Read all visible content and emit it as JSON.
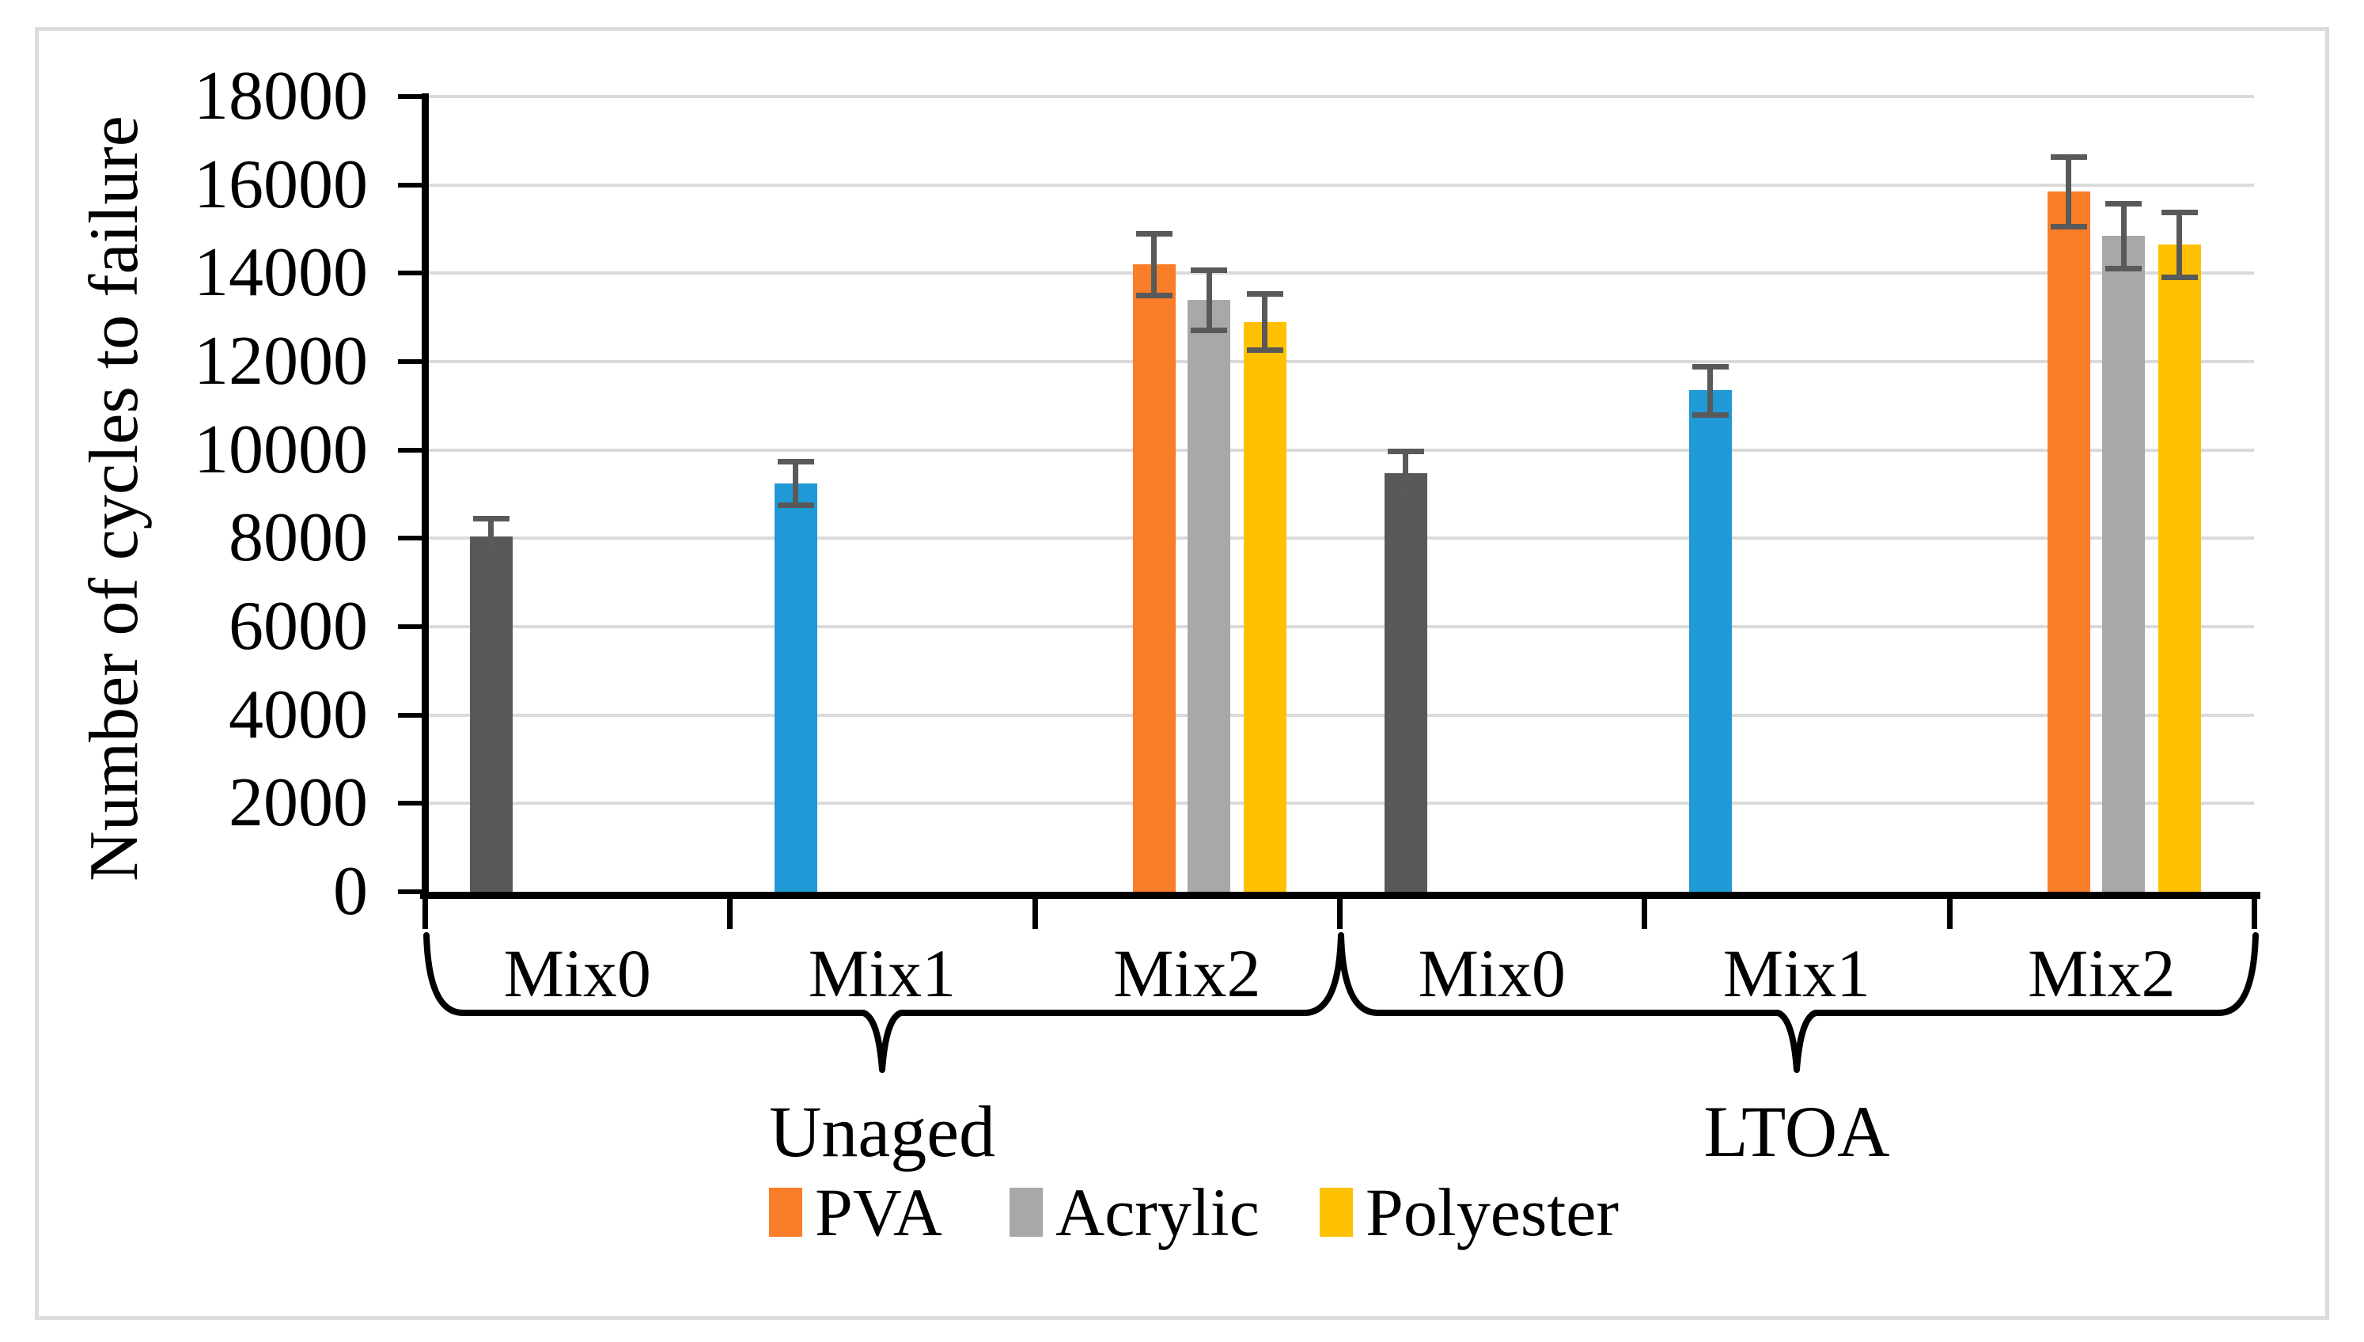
{
  "chart_data": {
    "type": "bar",
    "title": "",
    "ylabel": "Number of cycles to failure",
    "xlabel": "",
    "ylim": [
      0,
      18000
    ],
    "ytick_interval": 2000,
    "ytick_labels": [
      "0",
      "2000",
      "4000",
      "6000",
      "8000",
      "10000",
      "12000",
      "14000",
      "16000",
      "18000"
    ],
    "grid": true,
    "legend_position": "bottom",
    "groups": [
      {
        "label": "Unaged",
        "categories": [
          {
            "label": "Mix0",
            "bars": [
              {
                "series": null,
                "color": "#585858",
                "value": 8050,
                "error": 400
              }
            ]
          },
          {
            "label": "Mix1",
            "bars": [
              {
                "series": null,
                "color": "#1F9AD7",
                "value": 9250,
                "error": 500
              }
            ]
          },
          {
            "label": "Mix2",
            "bars": [
              {
                "series": "PVA",
                "color": "#FA7D28",
                "value": 14200,
                "error": 700
              },
              {
                "series": "Acrylic",
                "color": "#A8A8A8",
                "value": 13400,
                "error": 680
              },
              {
                "series": "Polyester",
                "color": "#FFC000",
                "value": 12900,
                "error": 640
              }
            ]
          }
        ]
      },
      {
        "label": "LTOA",
        "categories": [
          {
            "label": "Mix0",
            "bars": [
              {
                "series": null,
                "color": "#585858",
                "value": 9480,
                "error": 500
              }
            ]
          },
          {
            "label": "Mix1",
            "bars": [
              {
                "series": null,
                "color": "#1F9AD7",
                "value": 11350,
                "error": 550
              }
            ]
          },
          {
            "label": "Mix2",
            "bars": [
              {
                "series": "PVA",
                "color": "#FA7D28",
                "value": 15850,
                "error": 780
              },
              {
                "series": "Acrylic",
                "color": "#A8A8A8",
                "value": 14850,
                "error": 740
              },
              {
                "series": "Polyester",
                "color": "#FFC000",
                "value": 14650,
                "error": 740
              }
            ]
          }
        ]
      }
    ],
    "legend": {
      "entries": [
        {
          "label": "PVA",
          "color": "#FA7D28"
        },
        {
          "label": "Acrylic",
          "color": "#A8A8A8"
        },
        {
          "label": "Polyester",
          "color": "#FFC000"
        }
      ]
    },
    "colors": {
      "gridline": "#DADADA",
      "axis": "#000000",
      "error_bar": "#595959",
      "chart_border": "#DCDCDC",
      "background": "#FFFFFF"
    }
  }
}
